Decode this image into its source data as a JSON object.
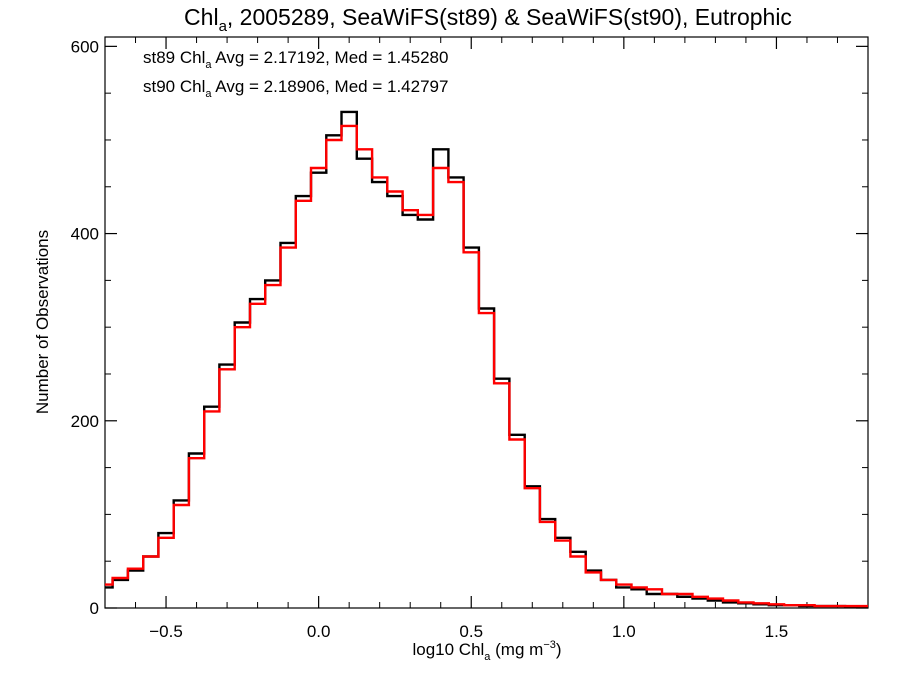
{
  "chart_data": {
    "type": "line",
    "style": "step-histogram",
    "title": {
      "prefix": "Chl",
      "subscript": "a",
      "suffix": ", 2005289, SeaWiFS(st89) & SeaWiFS(st90), Eutrophic"
    },
    "xlabel": {
      "prefix": "log10 Chl",
      "subscript": "a",
      "suffix": " (mg m",
      "superscript": "−3",
      "end": ")"
    },
    "ylabel": "Number of Observations",
    "xlim": [
      -0.7,
      1.8
    ],
    "ylim": [
      0,
      610
    ],
    "x_ticks": [
      -0.5,
      0.0,
      0.5,
      1.0,
      1.5
    ],
    "x_tick_labels": [
      "−0.5",
      "0.0",
      "0.5",
      "1.0",
      "1.5"
    ],
    "y_ticks": [
      0,
      200,
      400,
      600
    ],
    "y_tick_labels": [
      "0",
      "200",
      "400",
      "600"
    ],
    "grid": false,
    "annotations": [
      {
        "series": "st89",
        "prefix": "st89 Chl",
        "subscript": "a",
        "suffix": " Avg = 2.17192, Med = 1.45280",
        "color": "#000000"
      },
      {
        "series": "st90",
        "prefix": "st90 Chl",
        "subscript": "a",
        "suffix": " Avg = 2.18906, Med = 1.42797",
        "color": "#ff0000"
      }
    ],
    "x": [
      -0.7,
      -0.65,
      -0.6,
      -0.55,
      -0.5,
      -0.45,
      -0.4,
      -0.35,
      -0.3,
      -0.25,
      -0.2,
      -0.15,
      -0.1,
      -0.05,
      0.0,
      0.05,
      0.1,
      0.15,
      0.2,
      0.25,
      0.3,
      0.35,
      0.4,
      0.45,
      0.5,
      0.55,
      0.6,
      0.65,
      0.7,
      0.75,
      0.8,
      0.85,
      0.9,
      0.95,
      1.0,
      1.05,
      1.1,
      1.15,
      1.2,
      1.25,
      1.3,
      1.35,
      1.4,
      1.45,
      1.5,
      1.55,
      1.6,
      1.65,
      1.7,
      1.75,
      1.8
    ],
    "series": [
      {
        "id": "st89",
        "color": "#000000",
        "values": [
          22,
          30,
          40,
          55,
          80,
          115,
          165,
          215,
          260,
          305,
          330,
          350,
          390,
          440,
          465,
          505,
          530,
          480,
          455,
          440,
          420,
          415,
          490,
          460,
          385,
          320,
          245,
          185,
          130,
          95,
          75,
          60,
          40,
          30,
          22,
          20,
          15,
          15,
          12,
          10,
          8,
          6,
          5,
          4,
          3,
          3,
          2,
          2,
          2,
          1,
          1
        ]
      },
      {
        "id": "st90",
        "color": "#ff0000",
        "values": [
          25,
          32,
          42,
          55,
          75,
          110,
          160,
          210,
          255,
          300,
          325,
          345,
          385,
          435,
          470,
          500,
          515,
          490,
          460,
          445,
          425,
          420,
          470,
          455,
          380,
          315,
          240,
          180,
          128,
          92,
          72,
          55,
          38,
          30,
          25,
          22,
          20,
          15,
          15,
          12,
          10,
          8,
          6,
          5,
          4,
          3,
          3,
          2,
          2,
          2,
          2
        ]
      }
    ]
  }
}
